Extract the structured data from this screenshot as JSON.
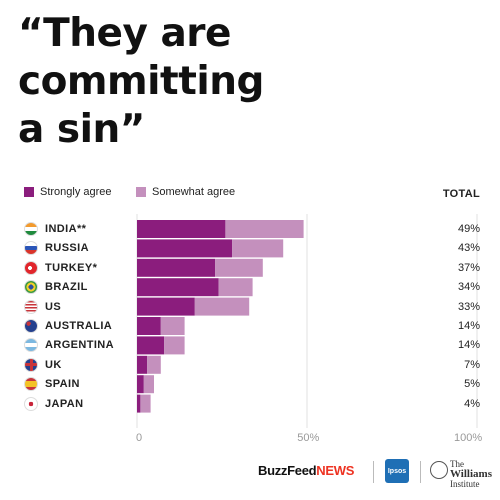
{
  "title_lines": [
    "“They are",
    "committing",
    "a sin”"
  ],
  "legend": {
    "strongly": {
      "label": "Strongly agree",
      "color": "#8b1d7d"
    },
    "somewhat": {
      "label": "Somewhat agree",
      "color": "#c490bd"
    }
  },
  "total_header": "TOTAL",
  "footer": {
    "buzzfeed_1": "BuzzFeed",
    "buzzfeed_2": "NEWS",
    "ipsos": "Ipsos",
    "williams_1": "The",
    "williams_2": "Williams",
    "williams_3": "Institute"
  },
  "chart_data": {
    "type": "bar",
    "orientation": "horizontal",
    "stacked": true,
    "categories": [
      "INDIA**",
      "RUSSIA",
      "TURKEY*",
      "BRAZIL",
      "US",
      "AUSTRALIA",
      "ARGENTINA",
      "UK",
      "SPAIN",
      "JAPAN"
    ],
    "series": [
      {
        "name": "Strongly agree",
        "values": [
          26,
          28,
          23,
          24,
          17,
          7,
          8,
          3,
          2,
          1
        ]
      },
      {
        "name": "Somewhat agree",
        "values": [
          23,
          15,
          14,
          10,
          16,
          7,
          6,
          4,
          3,
          3
        ]
      }
    ],
    "totals": [
      "49%",
      "43%",
      "37%",
      "34%",
      "33%",
      "14%",
      "14%",
      "7%",
      "5%",
      "4%"
    ],
    "xlim": [
      0,
      100
    ],
    "x_ticks": [
      {
        "value": 0,
        "label": "0"
      },
      {
        "value": 50,
        "label": "50%"
      },
      {
        "value": 100,
        "label": "100%"
      }
    ],
    "legend_position": "top-left",
    "grid": true
  }
}
